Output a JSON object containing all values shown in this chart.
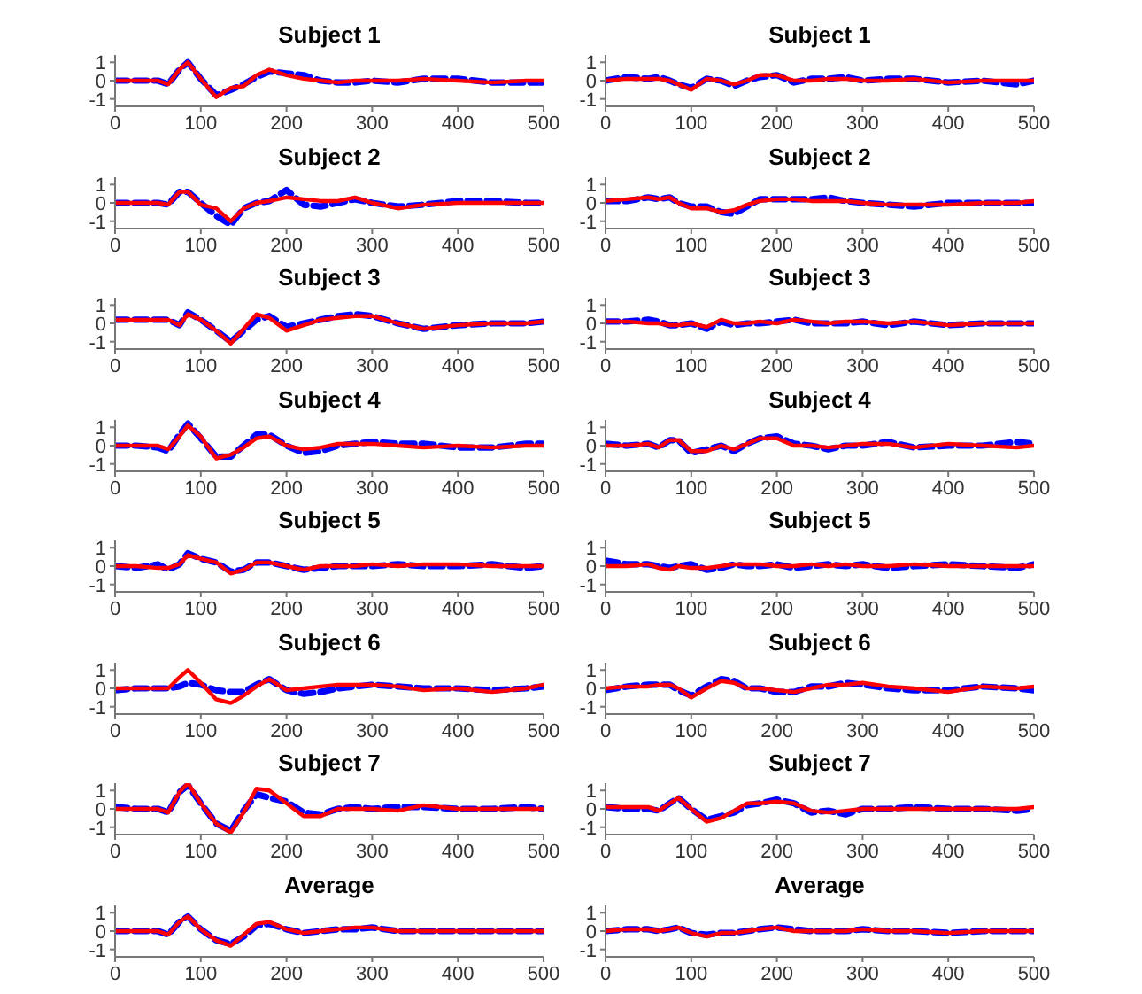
{
  "chart_data": [
    {
      "type": "line",
      "title": "Subject 1",
      "x": [
        0,
        25,
        50,
        62,
        75,
        85,
        100,
        118,
        135,
        150,
        165,
        180,
        200,
        220,
        240,
        260,
        280,
        300,
        330,
        360,
        400,
        440,
        480,
        500
      ],
      "xlim": [
        0,
        500
      ],
      "xticks": [
        0,
        100,
        200,
        300,
        400,
        500
      ],
      "ylim": [
        -1.4,
        1.4
      ],
      "yticks": [
        -1,
        0,
        1
      ],
      "series": [
        {
          "color": "#0000ff",
          "line_style": "dashed",
          "values": [
            0,
            0,
            0,
            -0.2,
            0.6,
            1.0,
            0.1,
            -0.8,
            -0.5,
            -0.2,
            0.2,
            0.5,
            0.4,
            0.3,
            0,
            -0.1,
            -0.1,
            0,
            -0.1,
            0.1,
            0.1,
            -0.1,
            -0.1,
            -0.1
          ]
        },
        {
          "color": "#ff0000",
          "line_style": "solid",
          "values": [
            0,
            0,
            0,
            -0.2,
            0.6,
            1.0,
            0.1,
            -0.9,
            -0.4,
            -0.3,
            0.3,
            0.6,
            0.3,
            0.1,
            0,
            -0.1,
            0,
            0,
            0,
            0.1,
            0,
            -0.1,
            0,
            0
          ]
        }
      ]
    },
    {
      "type": "line",
      "title": "Subject 1",
      "x": [
        0,
        25,
        50,
        62,
        75,
        85,
        100,
        118,
        135,
        150,
        165,
        180,
        200,
        220,
        240,
        260,
        280,
        300,
        330,
        360,
        400,
        440,
        480,
        500
      ],
      "xlim": [
        0,
        500
      ],
      "xticks": [
        0,
        100,
        200,
        300,
        400,
        500
      ],
      "ylim": [
        -1.4,
        1.4
      ],
      "yticks": [
        -1,
        0,
        1
      ],
      "series": [
        {
          "color": "#0000ff",
          "line_style": "dashed",
          "values": [
            0,
            0.2,
            0.1,
            0.2,
            0,
            -0.2,
            -0.4,
            0.1,
            0,
            -0.3,
            0,
            0.2,
            0.3,
            -0.1,
            0.1,
            0.1,
            0.2,
            0,
            0.1,
            0.1,
            -0.1,
            0,
            -0.2,
            0
          ]
        },
        {
          "color": "#ff0000",
          "line_style": "solid",
          "values": [
            0,
            0.1,
            0.1,
            0.1,
            0,
            -0.2,
            -0.5,
            0.1,
            0,
            -0.2,
            0,
            0.3,
            0.3,
            0,
            0,
            0.1,
            0.1,
            0,
            0,
            0.1,
            -0.1,
            0,
            0,
            0
          ]
        }
      ]
    },
    {
      "type": "line",
      "title": "Subject 2",
      "x": [
        0,
        25,
        50,
        62,
        75,
        85,
        100,
        118,
        135,
        150,
        165,
        180,
        200,
        220,
        240,
        260,
        280,
        300,
        330,
        360,
        400,
        440,
        480,
        500
      ],
      "xlim": [
        0,
        500
      ],
      "xticks": [
        0,
        100,
        200,
        300,
        400,
        500
      ],
      "ylim": [
        -1.4,
        1.4
      ],
      "yticks": [
        -1,
        0,
        1
      ],
      "series": [
        {
          "color": "#0000ff",
          "line_style": "dashed",
          "values": [
            0,
            0,
            0,
            -0.1,
            0.6,
            0.6,
            0,
            -0.7,
            -1.2,
            -0.3,
            0,
            0.1,
            0.7,
            -0.1,
            -0.2,
            0,
            0.2,
            0,
            -0.2,
            -0.1,
            0.1,
            0.1,
            0,
            0
          ]
        },
        {
          "color": "#ff0000",
          "line_style": "solid",
          "values": [
            0,
            0,
            0,
            -0.1,
            0.6,
            0.6,
            -0.1,
            -0.3,
            -1.0,
            -0.3,
            0,
            0.1,
            0.3,
            0.2,
            0.1,
            0.1,
            0.3,
            0,
            -0.3,
            -0.1,
            0,
            0,
            0,
            0
          ]
        }
      ]
    },
    {
      "type": "line",
      "title": "Subject 2",
      "x": [
        0,
        25,
        50,
        62,
        75,
        85,
        100,
        118,
        135,
        150,
        165,
        180,
        200,
        220,
        240,
        260,
        280,
        300,
        330,
        360,
        400,
        440,
        480,
        500
      ],
      "xlim": [
        0,
        500
      ],
      "xticks": [
        0,
        100,
        200,
        300,
        400,
        500
      ],
      "ylim": [
        -1.4,
        1.4
      ],
      "yticks": [
        -1,
        0,
        1
      ],
      "series": [
        {
          "color": "#0000ff",
          "line_style": "dashed",
          "values": [
            0.1,
            0.1,
            0.3,
            0.2,
            0.3,
            0,
            -0.2,
            -0.2,
            -0.5,
            -0.6,
            -0.2,
            0.2,
            0.2,
            0.2,
            0.2,
            0.3,
            0.1,
            0,
            -0.1,
            -0.2,
            0,
            0,
            0,
            0
          ]
        },
        {
          "color": "#ff0000",
          "line_style": "solid",
          "values": [
            0.1,
            0.2,
            0.3,
            0.2,
            0.3,
            0,
            -0.3,
            -0.3,
            -0.5,
            -0.4,
            -0.1,
            0.1,
            0.2,
            0.2,
            0.1,
            0.1,
            0.1,
            0,
            -0.1,
            -0.1,
            -0.1,
            0,
            0,
            0.1
          ]
        }
      ]
    },
    {
      "type": "line",
      "title": "Subject 3",
      "x": [
        0,
        25,
        50,
        62,
        75,
        85,
        100,
        118,
        135,
        150,
        165,
        180,
        200,
        220,
        240,
        260,
        280,
        300,
        330,
        360,
        400,
        440,
        480,
        500
      ],
      "xlim": [
        0,
        500
      ],
      "xticks": [
        0,
        100,
        200,
        300,
        400,
        500
      ],
      "ylim": [
        -1.4,
        1.4
      ],
      "yticks": [
        -1,
        0,
        1
      ],
      "series": [
        {
          "color": "#0000ff",
          "line_style": "dashed",
          "values": [
            0.2,
            0.2,
            0.2,
            0.2,
            -0.1,
            0.6,
            0.2,
            -0.4,
            -1.0,
            -0.4,
            0.2,
            0.4,
            -0.2,
            0,
            0.2,
            0.4,
            0.5,
            0.4,
            0,
            -0.3,
            -0.1,
            0,
            0,
            0.1
          ]
        },
        {
          "color": "#ff0000",
          "line_style": "solid",
          "values": [
            0.2,
            0.2,
            0.2,
            0.2,
            -0.1,
            0.5,
            0.2,
            -0.4,
            -1.1,
            -0.3,
            0.5,
            0.3,
            -0.4,
            -0.1,
            0.2,
            0.3,
            0.4,
            0.4,
            0,
            -0.3,
            -0.1,
            0,
            0,
            0.1
          ]
        }
      ]
    },
    {
      "type": "line",
      "title": "Subject 3",
      "x": [
        0,
        25,
        50,
        62,
        75,
        85,
        100,
        118,
        135,
        150,
        165,
        180,
        200,
        220,
        240,
        260,
        280,
        300,
        330,
        360,
        400,
        440,
        480,
        500
      ],
      "xlim": [
        0,
        500
      ],
      "xticks": [
        0,
        100,
        200,
        300,
        400,
        500
      ],
      "ylim": [
        -1.4,
        1.4
      ],
      "yticks": [
        -1,
        0,
        1
      ],
      "series": [
        {
          "color": "#0000ff",
          "line_style": "dashed",
          "values": [
            0.1,
            0.1,
            0.2,
            0.1,
            -0.1,
            -0.1,
            0,
            -0.3,
            0.1,
            -0.1,
            0,
            0,
            0.1,
            0.2,
            0,
            0,
            0,
            0.1,
            -0.1,
            0.1,
            -0.1,
            0,
            0,
            0
          ]
        },
        {
          "color": "#ff0000",
          "line_style": "solid",
          "values": [
            0.1,
            0.1,
            0,
            0,
            -0.1,
            -0.1,
            0,
            -0.2,
            0.2,
            0,
            0,
            0.1,
            0,
            0.2,
            0.1,
            0,
            0.1,
            0.1,
            0,
            0.1,
            -0.1,
            0,
            0,
            0
          ]
        }
      ]
    },
    {
      "type": "line",
      "title": "Subject 4",
      "x": [
        0,
        25,
        50,
        62,
        75,
        85,
        100,
        118,
        135,
        150,
        165,
        180,
        200,
        220,
        240,
        260,
        280,
        300,
        330,
        360,
        400,
        440,
        480,
        500
      ],
      "xlim": [
        0,
        500
      ],
      "xticks": [
        0,
        100,
        200,
        300,
        400,
        500
      ],
      "ylim": [
        -1.4,
        1.4
      ],
      "yticks": [
        -1,
        0,
        1
      ],
      "series": [
        {
          "color": "#0000ff",
          "line_style": "dashed",
          "values": [
            0,
            0,
            -0.1,
            -0.3,
            0.6,
            1.2,
            0.4,
            -0.6,
            -0.6,
            0,
            0.6,
            0.6,
            0,
            -0.4,
            -0.3,
            0,
            0.1,
            0.2,
            0.1,
            0.1,
            -0.1,
            -0.1,
            0.1,
            0.1
          ]
        },
        {
          "color": "#ff0000",
          "line_style": "solid",
          "values": [
            0,
            0,
            0,
            -0.2,
            0.5,
            1.1,
            0.5,
            -0.7,
            -0.5,
            -0.1,
            0.4,
            0.5,
            0,
            -0.2,
            -0.1,
            0.1,
            0.1,
            0.1,
            0,
            -0.1,
            0,
            -0.1,
            0,
            0
          ]
        }
      ]
    },
    {
      "type": "line",
      "title": "Subject 4",
      "x": [
        0,
        25,
        50,
        62,
        75,
        85,
        100,
        118,
        135,
        150,
        165,
        180,
        200,
        220,
        240,
        260,
        280,
        300,
        330,
        360,
        400,
        440,
        480,
        500
      ],
      "xlim": [
        0,
        500
      ],
      "xticks": [
        0,
        100,
        200,
        300,
        400,
        500
      ],
      "ylim": [
        -1.4,
        1.4
      ],
      "yticks": [
        -1,
        0,
        1
      ],
      "series": [
        {
          "color": "#0000ff",
          "line_style": "dashed",
          "values": [
            0.1,
            0,
            0.1,
            -0.1,
            0.3,
            0.3,
            -0.4,
            -0.2,
            0,
            -0.3,
            0.1,
            0.4,
            0.5,
            0.1,
            0,
            -0.2,
            0,
            0,
            0.2,
            -0.1,
            0,
            0,
            0.2,
            0.1
          ]
        },
        {
          "color": "#ff0000",
          "line_style": "solid",
          "values": [
            0,
            0,
            0.1,
            -0.1,
            0.3,
            0.3,
            -0.3,
            -0.3,
            0,
            -0.2,
            0.1,
            0.4,
            0.4,
            0,
            0,
            -0.1,
            0,
            0.1,
            0.1,
            -0.1,
            0.1,
            0,
            -0.1,
            0
          ]
        }
      ]
    },
    {
      "type": "line",
      "title": "Subject 5",
      "x": [
        0,
        25,
        50,
        62,
        75,
        85,
        100,
        118,
        135,
        150,
        165,
        180,
        200,
        220,
        240,
        260,
        280,
        300,
        330,
        360,
        400,
        440,
        480,
        500
      ],
      "xlim": [
        0,
        500
      ],
      "xticks": [
        0,
        100,
        200,
        300,
        400,
        500
      ],
      "ylim": [
        -1.4,
        1.4
      ],
      "yticks": [
        -1,
        0,
        1
      ],
      "series": [
        {
          "color": "#0000ff",
          "line_style": "dashed",
          "values": [
            0,
            -0.1,
            0.1,
            -0.2,
            0.1,
            0.7,
            0.4,
            0.2,
            -0.3,
            -0.2,
            0.2,
            0.2,
            0,
            -0.2,
            -0.1,
            0,
            0,
            0,
            0.1,
            0,
            0,
            0.1,
            -0.1,
            0
          ]
        },
        {
          "color": "#ff0000",
          "line_style": "solid",
          "values": [
            0,
            0,
            -0.1,
            -0.1,
            0.1,
            0.6,
            0.4,
            0.2,
            -0.4,
            -0.2,
            0.2,
            0.2,
            0,
            -0.2,
            0,
            0,
            0,
            0.1,
            0,
            0.1,
            0.1,
            0,
            0,
            0
          ]
        }
      ]
    },
    {
      "type": "line",
      "title": "Subject 5",
      "x": [
        0,
        25,
        50,
        62,
        75,
        85,
        100,
        118,
        135,
        150,
        165,
        180,
        200,
        220,
        240,
        260,
        280,
        300,
        330,
        360,
        400,
        440,
        480,
        500
      ],
      "xlim": [
        0,
        500
      ],
      "xticks": [
        0,
        100,
        200,
        300,
        400,
        500
      ],
      "ylim": [
        -1.4,
        1.4
      ],
      "yticks": [
        -1,
        0,
        1
      ],
      "series": [
        {
          "color": "#0000ff",
          "line_style": "dashed",
          "values": [
            0.3,
            0.1,
            0.1,
            0,
            -0.1,
            0,
            0.1,
            -0.2,
            -0.1,
            0.1,
            0,
            0,
            0.1,
            -0.1,
            0,
            0.1,
            0,
            0.1,
            -0.1,
            0,
            0.1,
            0,
            -0.1,
            0.1
          ]
        },
        {
          "color": "#ff0000",
          "line_style": "solid",
          "values": [
            0,
            0,
            0.1,
            -0.1,
            -0.2,
            0,
            -0.1,
            -0.1,
            0,
            0.1,
            0.1,
            0.1,
            0,
            0,
            0.1,
            0,
            0.1,
            0,
            0,
            0.1,
            0,
            0,
            0,
            0
          ]
        }
      ]
    },
    {
      "type": "line",
      "title": "Subject 6",
      "x": [
        0,
        25,
        50,
        62,
        75,
        85,
        100,
        118,
        135,
        150,
        165,
        180,
        200,
        220,
        240,
        260,
        280,
        300,
        330,
        360,
        400,
        440,
        480,
        500
      ],
      "xlim": [
        0,
        500
      ],
      "xticks": [
        0,
        100,
        200,
        300,
        400,
        500
      ],
      "ylim": [
        -1.4,
        1.4
      ],
      "yticks": [
        -1,
        0,
        1
      ],
      "series": [
        {
          "color": "#0000ff",
          "line_style": "dashed",
          "values": [
            -0.1,
            0,
            0,
            0,
            0.1,
            0.3,
            0.2,
            -0.1,
            -0.2,
            -0.2,
            0.2,
            0.5,
            -0.1,
            -0.3,
            -0.2,
            0,
            0.1,
            0.2,
            0.1,
            0,
            0,
            -0.1,
            0,
            0.1
          ]
        },
        {
          "color": "#ff0000",
          "line_style": "solid",
          "values": [
            0,
            0,
            0,
            0,
            0.6,
            1.0,
            0.3,
            -0.6,
            -0.8,
            -0.4,
            0.1,
            0.5,
            -0.1,
            0,
            0.1,
            0.2,
            0.2,
            0.2,
            0.1,
            -0.1,
            0,
            -0.2,
            0,
            0.2
          ]
        }
      ]
    },
    {
      "type": "line",
      "title": "Subject 6",
      "x": [
        0,
        25,
        50,
        62,
        75,
        85,
        100,
        118,
        135,
        150,
        165,
        180,
        200,
        220,
        240,
        260,
        280,
        300,
        330,
        360,
        400,
        440,
        480,
        500
      ],
      "xlim": [
        0,
        500
      ],
      "xticks": [
        0,
        100,
        200,
        300,
        400,
        500
      ],
      "ylim": [
        -1.4,
        1.4
      ],
      "yticks": [
        -1,
        0,
        1
      ],
      "series": [
        {
          "color": "#0000ff",
          "line_style": "dashed",
          "values": [
            -0.1,
            0.1,
            0.2,
            0.2,
            0.2,
            -0.1,
            -0.4,
            0.1,
            0.5,
            0.4,
            0,
            0,
            -0.2,
            -0.2,
            0.1,
            0.1,
            0.3,
            0.2,
            0,
            -0.1,
            -0.1,
            0.1,
            0,
            -0.1
          ]
        },
        {
          "color": "#ff0000",
          "line_style": "solid",
          "values": [
            0,
            0.1,
            0.1,
            0.2,
            0.2,
            0,
            -0.5,
            0,
            0.4,
            0.3,
            0,
            0,
            -0.1,
            -0.2,
            0,
            0.2,
            0.2,
            0.3,
            0.1,
            0,
            -0.2,
            0.1,
            0,
            0.1
          ]
        }
      ]
    },
    {
      "type": "line",
      "title": "Subject 7",
      "x": [
        0,
        25,
        50,
        62,
        75,
        85,
        100,
        118,
        135,
        150,
        165,
        180,
        200,
        220,
        240,
        260,
        280,
        300,
        330,
        360,
        400,
        440,
        480,
        500
      ],
      "xlim": [
        0,
        500
      ],
      "xticks": [
        0,
        100,
        200,
        300,
        400,
        500
      ],
      "ylim": [
        -1.4,
        1.4
      ],
      "yticks": [
        -1,
        0,
        1
      ],
      "series": [
        {
          "color": "#0000ff",
          "line_style": "dashed",
          "values": [
            0.1,
            0,
            0,
            -0.2,
            0.9,
            1.3,
            0.3,
            -0.8,
            -1.2,
            -0.1,
            0.8,
            0.6,
            0.4,
            -0.2,
            -0.3,
            0,
            0.1,
            0,
            0.1,
            0.1,
            0,
            0,
            0.1,
            0
          ]
        },
        {
          "color": "#ff0000",
          "line_style": "solid",
          "values": [
            0,
            0,
            0,
            -0.2,
            0.9,
            1.4,
            0.3,
            -0.8,
            -1.3,
            -0.2,
            1.1,
            1.0,
            0.3,
            -0.4,
            -0.4,
            0,
            0,
            0,
            -0.1,
            0.2,
            0,
            0,
            0,
            0
          ]
        }
      ]
    },
    {
      "type": "line",
      "title": "Subject 7",
      "x": [
        0,
        25,
        50,
        62,
        75,
        85,
        100,
        118,
        135,
        150,
        165,
        180,
        200,
        220,
        240,
        260,
        280,
        300,
        330,
        360,
        400,
        440,
        480,
        500
      ],
      "xlim": [
        0,
        500
      ],
      "xticks": [
        0,
        100,
        200,
        300,
        400,
        500
      ],
      "ylim": [
        -1.4,
        1.4
      ],
      "yticks": [
        -1,
        0,
        1
      ],
      "series": [
        {
          "color": "#0000ff",
          "line_style": "dashed",
          "values": [
            0.1,
            0,
            0,
            -0.1,
            0.3,
            0.6,
            0,
            -0.6,
            -0.4,
            -0.2,
            0.2,
            0.3,
            0.5,
            0.3,
            -0.2,
            -0.1,
            -0.3,
            0,
            0,
            0.1,
            0,
            0,
            -0.1,
            0
          ]
        },
        {
          "color": "#ff0000",
          "line_style": "solid",
          "values": [
            0.1,
            0.1,
            0.1,
            -0.1,
            0.3,
            0.6,
            0,
            -0.7,
            -0.5,
            -0.1,
            0.3,
            0.3,
            0.4,
            0.3,
            -0.1,
            -0.2,
            -0.1,
            0,
            0,
            0,
            0,
            0,
            0,
            0.1
          ]
        }
      ]
    },
    {
      "type": "line",
      "title": "Average",
      "x": [
        0,
        25,
        50,
        62,
        75,
        85,
        100,
        118,
        135,
        150,
        165,
        180,
        200,
        220,
        240,
        260,
        280,
        300,
        330,
        360,
        400,
        440,
        480,
        500
      ],
      "xlim": [
        0,
        500
      ],
      "xticks": [
        0,
        100,
        200,
        300,
        400,
        500
      ],
      "ylim": [
        -1.4,
        1.4
      ],
      "yticks": [
        -1,
        0,
        1
      ],
      "series": [
        {
          "color": "#0000ff",
          "line_style": "dashed",
          "values": [
            0,
            0,
            0,
            -0.2,
            0.5,
            0.8,
            0.1,
            -0.5,
            -0.7,
            -0.3,
            0.3,
            0.4,
            0.1,
            -0.1,
            0,
            0.1,
            0.1,
            0.2,
            0,
            0,
            0,
            0,
            0,
            0
          ]
        },
        {
          "color": "#ff0000",
          "line_style": "solid",
          "values": [
            0,
            0,
            0,
            -0.2,
            0.5,
            0.8,
            0.1,
            -0.5,
            -0.8,
            -0.2,
            0.4,
            0.5,
            0.1,
            -0.1,
            0,
            0.1,
            0.2,
            0.2,
            0,
            0,
            0,
            0,
            0,
            0
          ]
        }
      ]
    },
    {
      "type": "line",
      "title": "Average",
      "x": [
        0,
        25,
        50,
        62,
        75,
        85,
        100,
        118,
        135,
        150,
        165,
        180,
        200,
        220,
        240,
        260,
        280,
        300,
        330,
        360,
        400,
        440,
        480,
        500
      ],
      "xlim": [
        0,
        500
      ],
      "xticks": [
        0,
        100,
        200,
        300,
        400,
        500
      ],
      "ylim": [
        -1.4,
        1.4
      ],
      "yticks": [
        -1,
        0,
        1
      ],
      "series": [
        {
          "color": "#0000ff",
          "line_style": "dashed",
          "values": [
            0,
            0.1,
            0.1,
            0,
            0.1,
            0.2,
            -0.1,
            -0.2,
            -0.1,
            -0.1,
            0,
            0.1,
            0.2,
            0.1,
            0,
            0,
            0,
            0.1,
            0,
            0,
            -0.1,
            0,
            0,
            0
          ]
        },
        {
          "color": "#ff0000",
          "line_style": "solid",
          "values": [
            0,
            0.1,
            0.1,
            0,
            0.1,
            0.2,
            -0.1,
            -0.3,
            -0.1,
            -0.1,
            0,
            0.1,
            0.2,
            0,
            0,
            0,
            0,
            0.1,
            0,
            0,
            -0.1,
            0,
            0,
            0
          ]
        }
      ]
    }
  ]
}
